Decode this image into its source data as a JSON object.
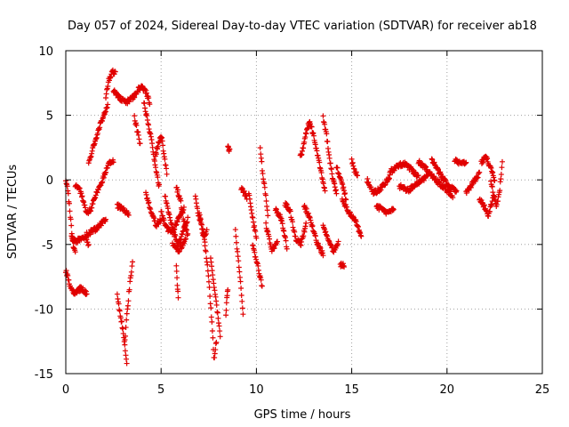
{
  "chart_data": {
    "type": "scatter",
    "title": "Day 057 of 2024, Sidereal Day-to-day VTEC variation (SDTVAR) for receiver ab18",
    "xlabel": "GPS time / hours",
    "ylabel": "SDTVAR / TECUs",
    "xlim": [
      0,
      25
    ],
    "ylim": [
      -15,
      10
    ],
    "xticks": [
      0,
      5,
      10,
      15,
      20,
      25
    ],
    "yticks": [
      -15,
      -10,
      -5,
      0,
      5,
      10
    ],
    "grid": true,
    "marker": "+",
    "color": "#e00000",
    "series": [
      {
        "name": "SDTVAR",
        "segments": [
          {
            "x0": 0.0,
            "x1": 0.5,
            "y": [
              0.0,
              -1.0,
              -3.0,
              -5.0,
              -5.5
            ]
          },
          {
            "x0": 0.0,
            "x1": 1.1,
            "y": [
              -7.0,
              -8.2,
              -8.8,
              -8.5,
              -8.4,
              -8.8
            ]
          },
          {
            "x0": 0.3,
            "x1": 1.2,
            "y": [
              -4.5,
              -4.8,
              -4.6,
              -4.4,
              -5.0
            ]
          },
          {
            "x0": 0.5,
            "x1": 1.1,
            "y": [
              -0.4,
              -0.6,
              -1.0,
              -1.8,
              -2.7
            ]
          },
          {
            "x0": 1.1,
            "x1": 2.5,
            "y": [
              -2.6,
              -2.2,
              -1.2,
              -0.4,
              0.4,
              1.3,
              1.5
            ]
          },
          {
            "x0": 1.1,
            "x1": 2.1,
            "y": [
              -4.2,
              -3.8,
              -3.0
            ]
          },
          {
            "x0": 1.2,
            "x1": 2.2,
            "y": [
              1.2,
              2.6,
              3.8,
              4.8,
              5.8
            ]
          },
          {
            "x0": 2.1,
            "x1": 2.6,
            "y": [
              6.5,
              7.8,
              8.4,
              8.3
            ]
          },
          {
            "x0": 2.5,
            "x1": 3.6,
            "y": [
              7.0,
              6.5,
              6.2,
              6.0,
              6.2,
              6.5
            ]
          },
          {
            "x0": 2.7,
            "x1": 3.3,
            "y": [
              -2.0,
              -2.3,
              -2.6
            ]
          },
          {
            "x0": 2.7,
            "x1": 3.2,
            "y": [
              -8.8,
              -10.5,
              -12.0,
              -14.3
            ]
          },
          {
            "x0": 3.1,
            "x1": 3.5,
            "y": [
              -12.5,
              -10.0,
              -8.0,
              -6.4
            ]
          },
          {
            "x0": 3.6,
            "x1": 4.4,
            "y": [
              6.5,
              7.0,
              7.2,
              6.8,
              6.0
            ]
          },
          {
            "x0": 3.6,
            "x1": 3.9,
            "y": [
              4.8,
              3.8,
              2.8
            ]
          },
          {
            "x0": 4.1,
            "x1": 4.9,
            "y": [
              6.0,
              4.5,
              3.0,
              1.0,
              -0.5
            ]
          },
          {
            "x0": 4.7,
            "x1": 5.3,
            "y": [
              1.8,
              2.8,
              3.5,
              2.0,
              0.5
            ]
          },
          {
            "x0": 4.2,
            "x1": 5.0,
            "y": [
              -1.0,
              -2.5,
              -3.5,
              -3.0
            ]
          },
          {
            "x0": 5.0,
            "x1": 6.2,
            "y": [
              -2.5,
              -3.8,
              -4.0,
              -3.0,
              -2.2
            ]
          },
          {
            "x0": 5.2,
            "x1": 6.4,
            "y": [
              -1.2,
              -2.8,
              -4.2,
              -5.0,
              -4.0,
              -3.0
            ]
          },
          {
            "x0": 5.8,
            "x1": 6.4,
            "y": [
              -0.6,
              -1.5,
              -3.2,
              -4.3
            ]
          },
          {
            "x0": 5.6,
            "x1": 6.3,
            "y": [
              -5.0,
              -5.5,
              -4.5
            ]
          },
          {
            "x0": 5.8,
            "x1": 5.9,
            "y": [
              -6.5,
              -8.0,
              -9.0
            ]
          },
          {
            "x0": 6.8,
            "x1": 7.3,
            "y": [
              -1.2,
              -2.5,
              -3.2,
              -4.0,
              -4.8
            ]
          },
          {
            "x0": 7.0,
            "x1": 7.4,
            "y": [
              -2.5,
              -3.5,
              -4.3,
              -4.0
            ]
          },
          {
            "x0": 7.3,
            "x1": 7.9,
            "y": [
              -5.0,
              -6.5,
              -8.5,
              -11.0,
              -13.9,
              -12.5
            ]
          },
          {
            "x0": 7.6,
            "x1": 8.1,
            "y": [
              -6.0,
              -7.5,
              -9.0,
              -10.5,
              -12.0
            ]
          },
          {
            "x0": 8.4,
            "x1": 8.5,
            "y": [
              -10.4,
              -9.0,
              -8.4
            ]
          },
          {
            "x0": 8.5,
            "x1": 8.6,
            "y": [
              2.7,
              2.2
            ]
          },
          {
            "x0": 8.9,
            "x1": 9.3,
            "y": [
              -4.0,
              -6.0,
              -8.0,
              -10.3
            ]
          },
          {
            "x0": 9.2,
            "x1": 9.5,
            "y": [
              -0.6,
              -1.0,
              -1.4
            ]
          },
          {
            "x0": 9.6,
            "x1": 10.0,
            "y": [
              -1.0,
              -3.0,
              -4.5
            ]
          },
          {
            "x0": 9.8,
            "x1": 10.3,
            "y": [
              -5.0,
              -6.5,
              -8.3
            ]
          },
          {
            "x0": 10.2,
            "x1": 10.6,
            "y": [
              2.4,
              0.5,
              -1.0,
              -2.8
            ]
          },
          {
            "x0": 10.5,
            "x1": 11.1,
            "y": [
              -3.5,
              -5.5,
              -4.8
            ]
          },
          {
            "x0": 11.0,
            "x1": 11.6,
            "y": [
              -2.3,
              -3.0,
              -5.2
            ]
          },
          {
            "x0": 11.5,
            "x1": 12.6,
            "y": [
              -1.8,
              -2.5,
              -4.5,
              -5.0,
              -3.5
            ]
          },
          {
            "x0": 12.3,
            "x1": 12.8,
            "y": [
              1.8,
              2.5,
              3.8,
              4.6
            ]
          },
          {
            "x0": 12.5,
            "x1": 13.5,
            "y": [
              -2.0,
              -3.0,
              -4.8,
              -5.8
            ]
          },
          {
            "x0": 12.8,
            "x1": 13.6,
            "y": [
              4.5,
              3.5,
              2.0,
              0.5,
              -1.0
            ]
          },
          {
            "x0": 13.5,
            "x1": 14.2,
            "y": [
              4.8,
              3.5,
              1.5,
              0.0,
              -1.0
            ]
          },
          {
            "x0": 13.5,
            "x1": 14.3,
            "y": [
              -3.5,
              -4.5,
              -5.5,
              -4.8
            ]
          },
          {
            "x0": 14.2,
            "x1": 14.7,
            "y": [
              1.0,
              0.0,
              -1.5
            ]
          },
          {
            "x0": 14.4,
            "x1": 14.6,
            "y": [
              -6.6
            ]
          },
          {
            "x0": 14.5,
            "x1": 15.5,
            "y": [
              -1.5,
              -2.5,
              -3.0,
              -4.5
            ]
          },
          {
            "x0": 15.0,
            "x1": 15.3,
            "y": [
              1.5,
              0.8,
              0.3
            ]
          },
          {
            "x0": 15.8,
            "x1": 17.0,
            "y": [
              0.0,
              -1.0,
              -0.8,
              -0.4,
              0.3
            ]
          },
          {
            "x0": 16.3,
            "x1": 17.2,
            "y": [
              -2.0,
              -2.5,
              -2.2
            ]
          },
          {
            "x0": 17.0,
            "x1": 18.5,
            "y": [
              0.6,
              1.0,
              1.3,
              0.8,
              0.2
            ]
          },
          {
            "x0": 17.5,
            "x1": 19.0,
            "y": [
              -0.5,
              -0.8,
              -0.2,
              0.3
            ]
          },
          {
            "x0": 18.5,
            "x1": 20.3,
            "y": [
              1.4,
              0.8,
              0.0,
              -0.6,
              -1.2
            ]
          },
          {
            "x0": 19.2,
            "x1": 20.5,
            "y": [
              1.5,
              0.5,
              -0.5,
              -0.8
            ]
          },
          {
            "x0": 20.4,
            "x1": 21.0,
            "y": [
              1.5,
              1.2
            ]
          },
          {
            "x0": 21.0,
            "x1": 21.7,
            "y": [
              -1.0,
              -0.5,
              0.0,
              0.5
            ]
          },
          {
            "x0": 21.7,
            "x1": 22.4,
            "y": [
              -1.5,
              -2.0,
              -2.7,
              -1.5
            ]
          },
          {
            "x0": 21.8,
            "x1": 22.5,
            "y": [
              1.3,
              1.8,
              1.0,
              0.0
            ]
          },
          {
            "x0": 22.3,
            "x1": 22.9,
            "y": [
              0.0,
              -1.2,
              -2.0,
              -1.0,
              1.3
            ]
          }
        ]
      }
    ]
  }
}
